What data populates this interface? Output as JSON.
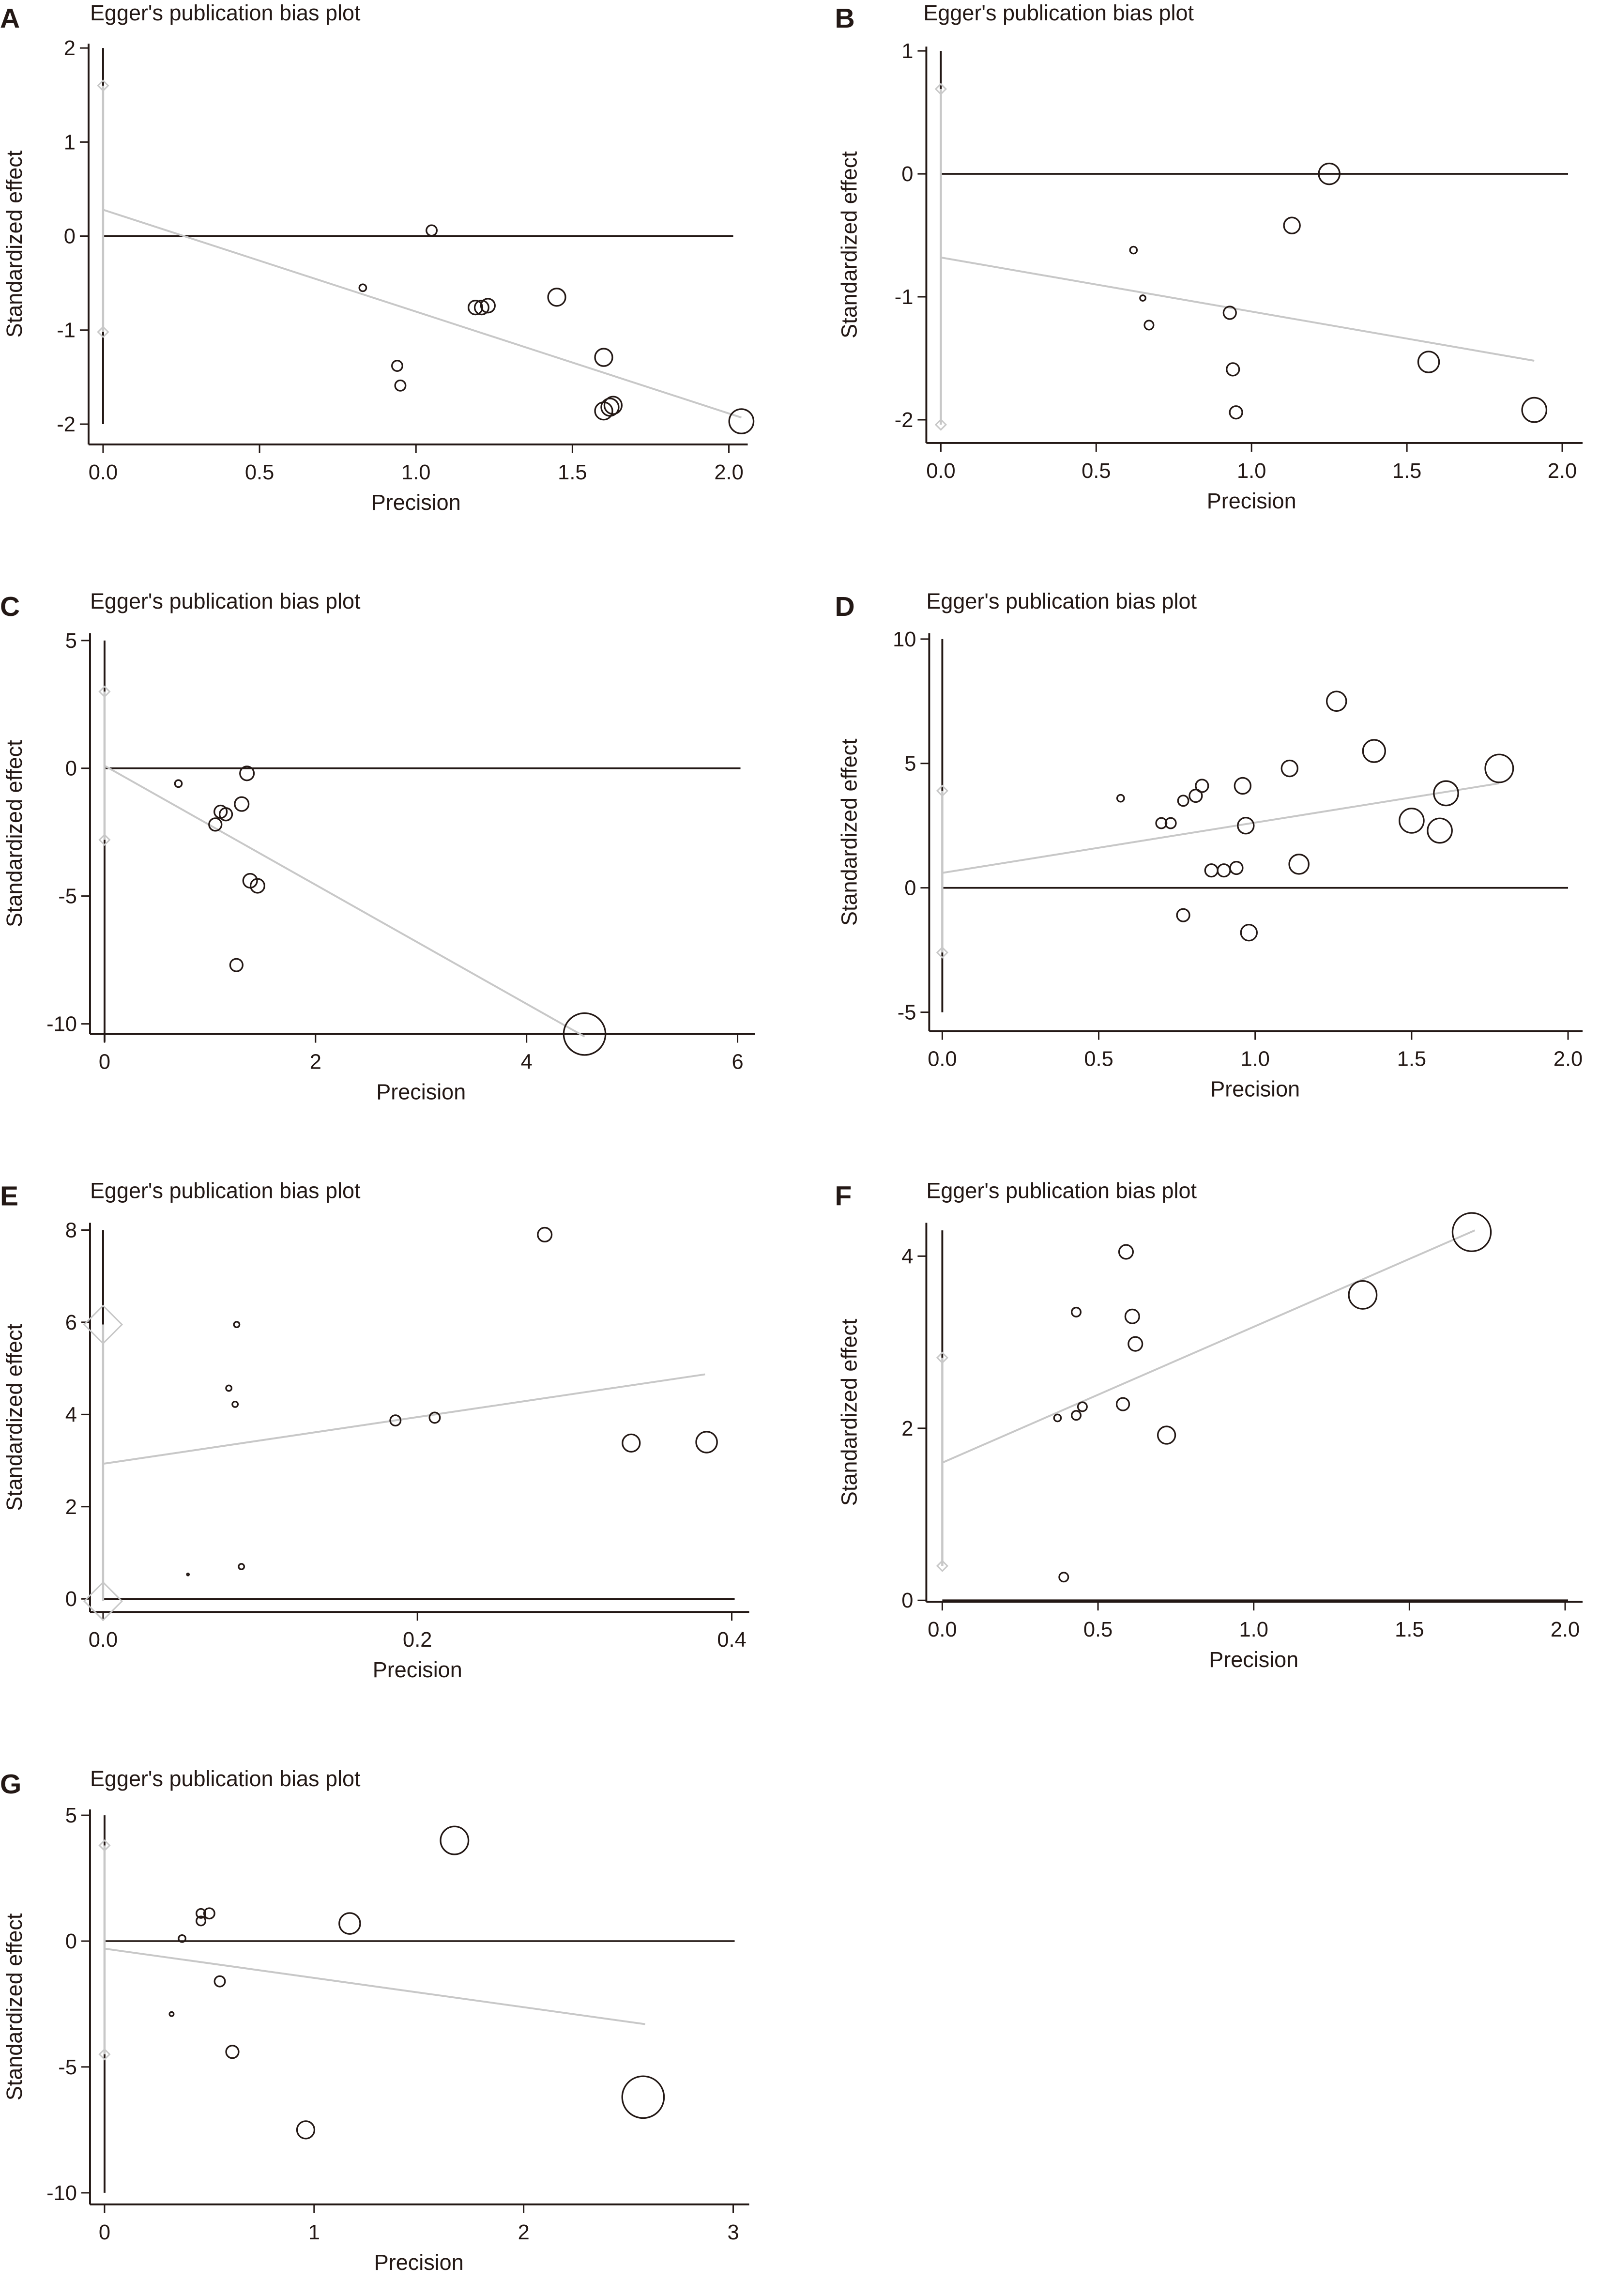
{
  "colors": {
    "axis": "#231815",
    "marker": "#231815",
    "fit_line": "#c8c8c8",
    "ci": "#c8c8c8"
  },
  "chart_data": [
    {
      "panel": "A",
      "type": "scatter",
      "title": "Egger's publication bias plot",
      "xlabel": "Precision",
      "ylabel": "Standardized effect",
      "xlim": [
        0,
        2.05
      ],
      "ylim": [
        -2,
        2
      ],
      "xticks": [
        {
          "v": 0,
          "label": "0.0"
        },
        {
          "v": 0.5,
          "label": "0.5"
        },
        {
          "v": 1,
          "label": "1.0"
        },
        {
          "v": 1.5,
          "label": "1.5"
        },
        {
          "v": 2,
          "label": "2.0"
        }
      ],
      "yticks": [
        {
          "v": -2,
          "label": "-2"
        },
        {
          "v": -1,
          "label": "-1"
        },
        {
          "v": 0,
          "label": "0"
        },
        {
          "v": 1,
          "label": "1"
        },
        {
          "v": 2,
          "label": "2"
        }
      ],
      "fit_line": [
        [
          0,
          0.28
        ],
        [
          2.04,
          -1.93
        ]
      ],
      "intercept_ci": [
        -1.02,
        1.6
      ],
      "whisker": [
        -2,
        2
      ],
      "points": [
        [
          0.83,
          -0.55,
          1
        ],
        [
          0.94,
          -1.38,
          1.5
        ],
        [
          0.95,
          -1.59,
          1.5
        ],
        [
          1.05,
          0.06,
          1.5
        ],
        [
          1.19,
          -0.76,
          2
        ],
        [
          1.21,
          -0.76,
          2
        ],
        [
          1.23,
          -0.74,
          2
        ],
        [
          1.45,
          -0.65,
          2.5
        ],
        [
          1.6,
          -1.29,
          2.5
        ],
        [
          1.6,
          -1.86,
          2.5
        ],
        [
          1.62,
          -1.82,
          2.5
        ],
        [
          1.63,
          -1.8,
          2.5
        ],
        [
          2.04,
          -1.97,
          3.5
        ]
      ]
    },
    {
      "panel": "B",
      "type": "scatter",
      "title": "Egger's publication bias plot",
      "xlabel": "Precision",
      "ylabel": "Standardized effect",
      "xlim": [
        0,
        2
      ],
      "ylim": [
        -2,
        1
      ],
      "xticks": [
        {
          "v": 0,
          "label": "0.0"
        },
        {
          "v": 0.5,
          "label": "0.5"
        },
        {
          "v": 1,
          "label": "1.0"
        },
        {
          "v": 1.5,
          "label": "1.5"
        },
        {
          "v": 2,
          "label": "2.0"
        }
      ],
      "yticks": [
        {
          "v": -2,
          "label": "-2"
        },
        {
          "v": -1,
          "label": "-1"
        },
        {
          "v": 0,
          "label": "0"
        },
        {
          "v": 1,
          "label": "1"
        }
      ],
      "fit_line": [
        [
          0,
          -0.68
        ],
        [
          1.91,
          -1.52
        ]
      ],
      "intercept_ci": [
        -2.04,
        0.69
      ],
      "whisker": [
        0.69,
        1
      ],
      "points": [
        [
          0.62,
          -0.62,
          1
        ],
        [
          0.65,
          -1.01,
          0.8
        ],
        [
          0.67,
          -1.23,
          1.3
        ],
        [
          0.93,
          -1.13,
          1.8
        ],
        [
          0.94,
          -1.59,
          1.8
        ],
        [
          0.95,
          -1.94,
          1.8
        ],
        [
          1.13,
          -0.42,
          2.3
        ],
        [
          1.25,
          0.0,
          3
        ],
        [
          1.57,
          -1.53,
          3
        ],
        [
          1.91,
          -1.92,
          3.5
        ]
      ]
    },
    {
      "panel": "C",
      "type": "scatter",
      "title": "Egger's publication bias plot",
      "xlabel": "Precision",
      "ylabel": "Standardized effect",
      "xlim": [
        0,
        6
      ],
      "ylim": [
        -10,
        5
      ],
      "xticks": [
        {
          "v": 0,
          "label": "0"
        },
        {
          "v": 2,
          "label": "2"
        },
        {
          "v": 4,
          "label": "4"
        },
        {
          "v": 6,
          "label": "6"
        }
      ],
      "yticks": [
        {
          "v": -10,
          "label": "-10"
        },
        {
          "v": -5,
          "label": "-5"
        },
        {
          "v": 0,
          "label": "0"
        },
        {
          "v": 5,
          "label": "5"
        }
      ],
      "fit_line": [
        [
          0,
          0.1
        ],
        [
          4.55,
          -10.5
        ]
      ],
      "intercept_ci": [
        -2.8,
        3.0
      ],
      "whisker": [
        -10.7,
        5
      ],
      "points": [
        [
          0.7,
          -0.6,
          1
        ],
        [
          1.05,
          -2.2,
          1.8
        ],
        [
          1.1,
          -1.7,
          1.8
        ],
        [
          1.15,
          -1.8,
          1.8
        ],
        [
          1.3,
          -1.4,
          2
        ],
        [
          1.25,
          -7.7,
          1.8
        ],
        [
          1.35,
          -0.2,
          2
        ],
        [
          1.38,
          -4.4,
          2
        ],
        [
          1.45,
          -4.6,
          2
        ],
        [
          4.55,
          -10.4,
          6
        ]
      ]
    },
    {
      "panel": "D",
      "type": "scatter",
      "title": "Egger's publication bias plot",
      "xlabel": "Precision",
      "ylabel": "Standardized effect",
      "xlim": [
        0,
        2
      ],
      "ylim": [
        -5,
        10
      ],
      "xticks": [
        {
          "v": 0,
          "label": "0.0"
        },
        {
          "v": 0.5,
          "label": "0.5"
        },
        {
          "v": 1,
          "label": "1.0"
        },
        {
          "v": 1.5,
          "label": "1.5"
        },
        {
          "v": 2,
          "label": "2.0"
        }
      ],
      "yticks": [
        {
          "v": -5,
          "label": "-5"
        },
        {
          "v": 0,
          "label": "0"
        },
        {
          "v": 5,
          "label": "5"
        },
        {
          "v": 10,
          "label": "10"
        }
      ],
      "fit_line": [
        [
          0,
          0.6
        ],
        [
          1.78,
          4.2
        ]
      ],
      "intercept_ci": [
        -2.6,
        3.9
      ],
      "whisker": [
        -5,
        10
      ],
      "points": [
        [
          0.57,
          3.6,
          1
        ],
        [
          0.7,
          2.6,
          1.5
        ],
        [
          0.73,
          2.6,
          1.5
        ],
        [
          0.77,
          3.5,
          1.5
        ],
        [
          0.81,
          3.7,
          1.8
        ],
        [
          0.83,
          4.1,
          1.8
        ],
        [
          0.86,
          0.7,
          1.8
        ],
        [
          0.9,
          0.7,
          1.8
        ],
        [
          0.94,
          0.8,
          1.8
        ],
        [
          0.96,
          4.1,
          2.3
        ],
        [
          0.97,
          2.5,
          2.3
        ],
        [
          0.98,
          -1.8,
          2.3
        ],
        [
          0.77,
          -1.1,
          1.8
        ],
        [
          1.11,
          4.8,
          2.3
        ],
        [
          1.14,
          0.95,
          2.8
        ],
        [
          1.26,
          7.5,
          2.8
        ],
        [
          1.38,
          5.5,
          3.2
        ],
        [
          1.5,
          2.7,
          3.5
        ],
        [
          1.59,
          2.3,
          3.5
        ],
        [
          1.61,
          3.8,
          3.5
        ],
        [
          1.78,
          4.8,
          4
        ]
      ]
    },
    {
      "panel": "E",
      "type": "scatter",
      "title": "Egger's publication bias plot",
      "xlabel": "Precision",
      "ylabel": "Standardized effect",
      "xlim": [
        0,
        0.4
      ],
      "ylim": [
        0,
        8
      ],
      "xticks": [
        {
          "v": 0,
          "label": "0.0"
        },
        {
          "v": 0.2,
          "label": "0.2"
        },
        {
          "v": 0.4,
          "label": "0.4"
        }
      ],
      "yticks": [
        {
          "v": 0,
          "label": "0"
        },
        {
          "v": 2,
          "label": "2"
        },
        {
          "v": 4,
          "label": "4"
        },
        {
          "v": 6,
          "label": "6"
        },
        {
          "v": 8,
          "label": "8"
        }
      ],
      "fit_line": [
        [
          0,
          2.93
        ],
        [
          0.383,
          4.87
        ]
      ],
      "intercept_ci": [
        -0.05,
        5.95
      ],
      "whisker": [
        5.95,
        8
      ],
      "ci_marker": "large",
      "points": [
        [
          0.054,
          0.53,
          0.3
        ],
        [
          0.08,
          4.57,
          0.8
        ],
        [
          0.085,
          5.95,
          0.8
        ],
        [
          0.084,
          4.22,
          0.8
        ],
        [
          0.088,
          0.7,
          0.8
        ],
        [
          0.186,
          3.87,
          1.5
        ],
        [
          0.211,
          3.93,
          1.5
        ],
        [
          0.281,
          7.9,
          2
        ],
        [
          0.336,
          3.38,
          2.5
        ],
        [
          0.384,
          3.4,
          3
        ]
      ]
    },
    {
      "panel": "F",
      "type": "scatter",
      "title": "Egger's publication bias plot",
      "xlabel": "Precision",
      "ylabel": "Standardized effect",
      "xlim": [
        0,
        2
      ],
      "ylim": [
        0,
        4
      ],
      "xticks": [
        {
          "v": 0,
          "label": "0.0"
        },
        {
          "v": 0.5,
          "label": "0.5"
        },
        {
          "v": 1,
          "label": "1.0"
        },
        {
          "v": 1.5,
          "label": "1.5"
        },
        {
          "v": 2,
          "label": "2.0"
        }
      ],
      "yticks": [
        {
          "v": 0,
          "label": "0"
        },
        {
          "v": 2,
          "label": "2"
        },
        {
          "v": 4,
          "label": "4"
        }
      ],
      "fit_line": [
        [
          0,
          1.6
        ],
        [
          1.71,
          4.3
        ]
      ],
      "intercept_ci": [
        0.4,
        2.82
      ],
      "whisker": [
        2.82,
        4.3
      ],
      "points": [
        [
          0.37,
          2.12,
          1
        ],
        [
          0.39,
          0.27,
          1.3
        ],
        [
          0.43,
          3.35,
          1.3
        ],
        [
          0.43,
          2.15,
          1.3
        ],
        [
          0.45,
          2.25,
          1.3
        ],
        [
          0.58,
          2.28,
          1.8
        ],
        [
          0.59,
          4.05,
          2
        ],
        [
          0.61,
          3.3,
          2
        ],
        [
          0.62,
          2.98,
          2
        ],
        [
          0.72,
          1.92,
          2.5
        ],
        [
          1.35,
          3.55,
          4
        ],
        [
          1.7,
          4.28,
          5.5
        ]
      ]
    },
    {
      "panel": "G",
      "type": "scatter",
      "title": "Egger's publication bias plot",
      "xlabel": "Precision",
      "ylabel": "Standardized effect",
      "xlim": [
        0,
        3
      ],
      "ylim": [
        -10,
        5
      ],
      "xticks": [
        {
          "v": 0,
          "label": "0"
        },
        {
          "v": 1,
          "label": "1"
        },
        {
          "v": 2,
          "label": "2"
        },
        {
          "v": 3,
          "label": "3"
        }
      ],
      "yticks": [
        {
          "v": -10,
          "label": "-10"
        },
        {
          "v": -5,
          "label": "-5"
        },
        {
          "v": 0,
          "label": "0"
        },
        {
          "v": 5,
          "label": "5"
        }
      ],
      "fit_line": [
        [
          0,
          -0.3
        ],
        [
          2.58,
          -3.3
        ]
      ],
      "intercept_ci": [
        -4.5,
        3.8
      ],
      "whisker": [
        -10,
        5
      ],
      "points": [
        [
          0.32,
          -2.9,
          0.6
        ],
        [
          0.37,
          0.1,
          1
        ],
        [
          0.46,
          1.1,
          1.3
        ],
        [
          0.46,
          0.8,
          1.3
        ],
        [
          0.5,
          1.1,
          1.5
        ],
        [
          0.55,
          -1.6,
          1.5
        ],
        [
          0.61,
          -4.4,
          1.8
        ],
        [
          0.96,
          -7.5,
          2.5
        ],
        [
          1.17,
          0.7,
          3
        ],
        [
          1.67,
          4.0,
          4
        ],
        [
          2.57,
          -6.2,
          6
        ]
      ]
    }
  ]
}
